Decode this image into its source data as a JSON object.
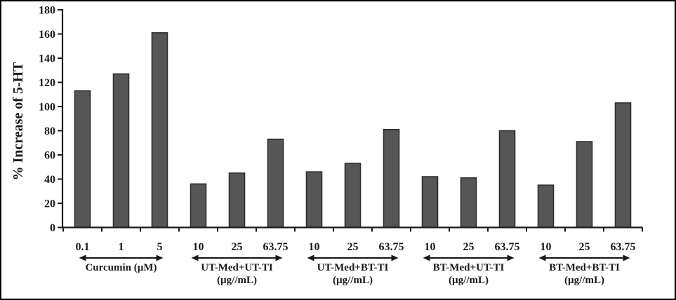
{
  "figure": {
    "background": "#ffffff",
    "border_color": "#000000"
  },
  "chart_data": {
    "type": "bar",
    "title": "",
    "xlabel": "",
    "ylabel": "% Increase of 5-HT",
    "ylim": [
      0,
      180
    ],
    "ytick_step": 20,
    "yticks": [
      "0",
      "20",
      "40",
      "60",
      "80",
      "100",
      "120",
      "140",
      "160",
      "180"
    ],
    "grid": false,
    "legend": false,
    "bar_fill": "#565656",
    "bar_stroke": "#2e2e2e",
    "axis_color": "#1a1a1a",
    "text_color": "#1a1a1a",
    "groups": [
      {
        "label": "Curcumin (µM)",
        "unit": "",
        "categories": [
          "0.1",
          "1",
          "5"
        ],
        "values": [
          113,
          127,
          161
        ]
      },
      {
        "label": "UT-Med+UT-TI",
        "unit": "(µg//mL)",
        "categories": [
          "10",
          "25",
          "63.75"
        ],
        "values": [
          36,
          45,
          73
        ]
      },
      {
        "label": "UT-Med+BT-TI",
        "unit": "(µg//mL)",
        "categories": [
          "10",
          "25",
          "63.75"
        ],
        "values": [
          46,
          53,
          81
        ]
      },
      {
        "label": "BT-Med+UT-TI",
        "unit": "(µg//mL)",
        "categories": [
          "10",
          "25",
          "63.75"
        ],
        "values": [
          42,
          41,
          80
        ]
      },
      {
        "label": "BT-Med+BT-TI",
        "unit": "(µg//mL)",
        "categories": [
          "10",
          "25",
          "63.75"
        ],
        "values": [
          35,
          71,
          103
        ]
      }
    ]
  }
}
